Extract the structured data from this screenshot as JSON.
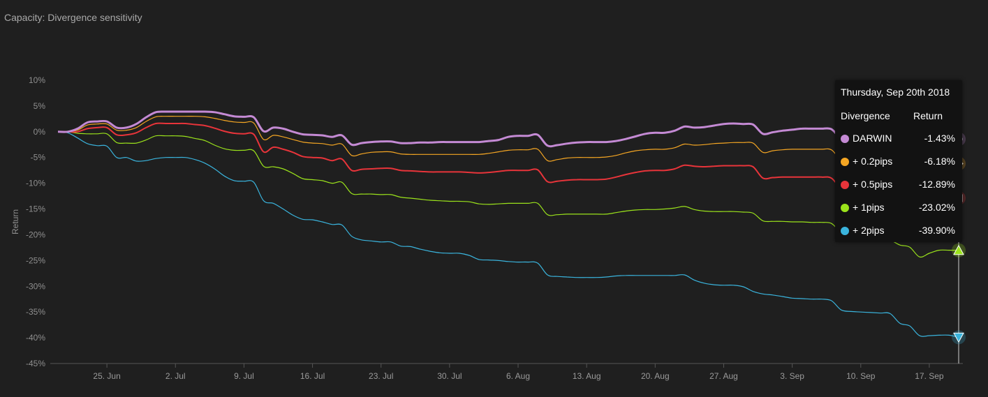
{
  "title": "Capacity: Divergence sensitivity",
  "chart_data": {
    "type": "line",
    "title": "Capacity: Divergence sensitivity",
    "ylabel": "Return",
    "ylim": [
      -45,
      10
    ],
    "y_ticks": [
      "10%",
      "5%",
      "0%",
      "-5%",
      "-10%",
      "-15%",
      "-20%",
      "-25%",
      "-30%",
      "-35%",
      "-40%",
      "-45%"
    ],
    "y_tick_values": [
      10,
      5,
      0,
      -5,
      -10,
      -15,
      -20,
      -25,
      -30,
      -35,
      -40,
      -45
    ],
    "x_start": "2018-06-20",
    "x_end": "2018-09-20",
    "x_ticks": [
      {
        "date": "2018-06-25",
        "label": "25. Jun"
      },
      {
        "date": "2018-07-02",
        "label": "2. Jul"
      },
      {
        "date": "2018-07-09",
        "label": "9. Jul"
      },
      {
        "date": "2018-07-16",
        "label": "16. Jul"
      },
      {
        "date": "2018-07-23",
        "label": "23. Jul"
      },
      {
        "date": "2018-07-30",
        "label": "30. Jul"
      },
      {
        "date": "2018-08-06",
        "label": "6. Aug"
      },
      {
        "date": "2018-08-13",
        "label": "13. Aug"
      },
      {
        "date": "2018-08-20",
        "label": "20. Aug"
      },
      {
        "date": "2018-08-27",
        "label": "27. Aug"
      },
      {
        "date": "2018-09-03",
        "label": "3. Sep"
      },
      {
        "date": "2018-09-10",
        "label": "10. Sep"
      },
      {
        "date": "2018-09-17",
        "label": "17. Sep"
      }
    ],
    "x": [
      "2018-06-20",
      "2018-06-21",
      "2018-06-22",
      "2018-06-23",
      "2018-06-24",
      "2018-06-25",
      "2018-06-26",
      "2018-06-27",
      "2018-06-28",
      "2018-06-29",
      "2018-06-30",
      "2018-07-01",
      "2018-07-02",
      "2018-07-03",
      "2018-07-04",
      "2018-07-05",
      "2018-07-06",
      "2018-07-07",
      "2018-07-08",
      "2018-07-09",
      "2018-07-10",
      "2018-07-11",
      "2018-07-12",
      "2018-07-13",
      "2018-07-14",
      "2018-07-15",
      "2018-07-16",
      "2018-07-17",
      "2018-07-18",
      "2018-07-19",
      "2018-07-20",
      "2018-07-21",
      "2018-07-22",
      "2018-07-23",
      "2018-07-24",
      "2018-07-25",
      "2018-07-26",
      "2018-07-27",
      "2018-07-28",
      "2018-07-29",
      "2018-07-30",
      "2018-07-31",
      "2018-08-01",
      "2018-08-02",
      "2018-08-03",
      "2018-08-04",
      "2018-08-05",
      "2018-08-06",
      "2018-08-07",
      "2018-08-08",
      "2018-08-09",
      "2018-08-10",
      "2018-08-11",
      "2018-08-12",
      "2018-08-13",
      "2018-08-14",
      "2018-08-15",
      "2018-08-16",
      "2018-08-17",
      "2018-08-18",
      "2018-08-19",
      "2018-08-20",
      "2018-08-21",
      "2018-08-22",
      "2018-08-23",
      "2018-08-24",
      "2018-08-25",
      "2018-08-26",
      "2018-08-27",
      "2018-08-28",
      "2018-08-29",
      "2018-08-30",
      "2018-08-31",
      "2018-09-01",
      "2018-09-02",
      "2018-09-03",
      "2018-09-04",
      "2018-09-05",
      "2018-09-06",
      "2018-09-07",
      "2018-09-08",
      "2018-09-09",
      "2018-09-10",
      "2018-09-11",
      "2018-09-12",
      "2018-09-13",
      "2018-09-14",
      "2018-09-15",
      "2018-09-16",
      "2018-09-17",
      "2018-09-18",
      "2018-09-19",
      "2018-09-20"
    ],
    "series": [
      {
        "name": "DARWIN",
        "color": "#c48ad4",
        "width": 3,
        "marker": "circle",
        "values": [
          0,
          0,
          0.6,
          1.8,
          2.0,
          2.0,
          0.8,
          0.8,
          1.5,
          2.8,
          3.8,
          3.9,
          3.9,
          3.9,
          3.9,
          3.9,
          3.8,
          3.4,
          3.0,
          2.9,
          2.8,
          0.1,
          0.8,
          0.6,
          0.0,
          -0.5,
          -0.6,
          -0.7,
          -1.0,
          -0.7,
          -2.5,
          -2.2,
          -2.0,
          -1.9,
          -1.9,
          -2.2,
          -2.2,
          -2.1,
          -2.1,
          -2.0,
          -2.0,
          -2.0,
          -2.0,
          -2.0,
          -1.8,
          -1.6,
          -1.0,
          -0.8,
          -0.8,
          -0.6,
          -2.7,
          -2.6,
          -2.3,
          -2.1,
          -2.0,
          -2.0,
          -2.0,
          -1.8,
          -1.4,
          -0.9,
          -0.4,
          -0.2,
          -0.2,
          0.2,
          1.0,
          0.8,
          0.9,
          1.2,
          1.5,
          1.6,
          1.5,
          1.4,
          -0.4,
          -0.1,
          0.2,
          0.4,
          0.6,
          0.6,
          0.6,
          0.5,
          -1.3,
          -1.3,
          -1.2,
          -1.2,
          -1.3,
          -1.3,
          -1.3,
          -1.4,
          -1.4,
          -1.4,
          -1.4,
          -1.4,
          -1.43
        ]
      },
      {
        "name": "+ 0.2pips",
        "color": "#f5a623",
        "width": 1.2,
        "marker": "diamond",
        "values": [
          0,
          0,
          0.3,
          1.3,
          1.5,
          1.5,
          0.3,
          0.3,
          0.8,
          2.0,
          2.9,
          3.0,
          3.0,
          3.0,
          3.0,
          2.9,
          2.6,
          2.2,
          1.9,
          1.8,
          1.7,
          -1.5,
          -0.7,
          -1.0,
          -1.5,
          -2.0,
          -2.2,
          -2.3,
          -2.6,
          -2.4,
          -4.6,
          -4.3,
          -4.0,
          -3.9,
          -3.9,
          -4.3,
          -4.4,
          -4.4,
          -4.4,
          -4.4,
          -4.4,
          -4.4,
          -4.4,
          -4.4,
          -4.2,
          -3.9,
          -3.6,
          -3.5,
          -3.5,
          -3.4,
          -5.6,
          -5.4,
          -5.1,
          -5.0,
          -5.0,
          -5.0,
          -4.9,
          -4.6,
          -4.1,
          -3.7,
          -3.5,
          -3.4,
          -3.4,
          -3.1,
          -2.4,
          -2.6,
          -2.5,
          -2.3,
          -2.2,
          -2.1,
          -2.1,
          -2.2,
          -4.0,
          -3.7,
          -3.5,
          -3.4,
          -3.4,
          -3.4,
          -3.4,
          -3.5,
          -5.5,
          -5.4,
          -5.3,
          -5.3,
          -5.4,
          -5.5,
          -5.7,
          -5.9,
          -6.0,
          -6.1,
          -6.1,
          -6.1,
          -6.18
        ]
      },
      {
        "name": "+ 0.5pips",
        "color": "#e8343a",
        "width": 2,
        "marker": "square",
        "values": [
          0,
          0,
          0,
          0.6,
          0.8,
          0.8,
          -0.6,
          -0.6,
          -0.2,
          0.8,
          1.6,
          1.6,
          1.6,
          1.6,
          1.4,
          1.2,
          0.7,
          0.1,
          -0.3,
          -0.4,
          -0.5,
          -3.9,
          -3.0,
          -3.4,
          -4.0,
          -4.8,
          -5.0,
          -5.1,
          -5.6,
          -5.3,
          -7.5,
          -7.3,
          -7.2,
          -7.1,
          -7.1,
          -7.5,
          -7.6,
          -7.7,
          -7.8,
          -7.8,
          -7.8,
          -7.8,
          -7.9,
          -8.0,
          -7.9,
          -7.7,
          -7.5,
          -7.5,
          -7.5,
          -7.4,
          -9.7,
          -9.6,
          -9.4,
          -9.3,
          -9.3,
          -9.3,
          -9.2,
          -8.8,
          -8.3,
          -7.9,
          -7.6,
          -7.5,
          -7.5,
          -7.2,
          -6.5,
          -6.7,
          -6.8,
          -6.7,
          -6.6,
          -6.6,
          -6.6,
          -6.8,
          -9.0,
          -8.9,
          -8.8,
          -8.8,
          -8.8,
          -8.8,
          -8.8,
          -9.0,
          -11.0,
          -11.0,
          -11.2,
          -11.5,
          -11.8,
          -12.0,
          -12.3,
          -12.6,
          -12.8,
          -12.9,
          -12.9,
          -12.9,
          -12.89
        ]
      },
      {
        "name": "+ 1pips",
        "color": "#9be31b",
        "width": 1.2,
        "marker": "triangle-up",
        "values": [
          0,
          0,
          -0.3,
          -0.4,
          -0.4,
          -0.4,
          -2.1,
          -2.2,
          -2.2,
          -1.6,
          -0.8,
          -0.8,
          -0.8,
          -0.9,
          -1.3,
          -1.7,
          -2.6,
          -3.3,
          -3.6,
          -3.6,
          -3.7,
          -6.7,
          -6.8,
          -7.2,
          -8.1,
          -9.1,
          -9.3,
          -9.5,
          -10.0,
          -9.8,
          -12.0,
          -12.1,
          -12.1,
          -12.2,
          -12.2,
          -12.7,
          -12.9,
          -13.1,
          -13.3,
          -13.4,
          -13.5,
          -13.5,
          -13.6,
          -14.0,
          -14.1,
          -14.0,
          -13.9,
          -13.9,
          -13.9,
          -13.9,
          -16.1,
          -16.1,
          -16.0,
          -16.0,
          -16.0,
          -16.0,
          -16.0,
          -15.7,
          -15.4,
          -15.2,
          -15.1,
          -15.1,
          -15.0,
          -14.8,
          -14.5,
          -15.1,
          -15.4,
          -15.5,
          -15.5,
          -15.5,
          -15.6,
          -15.8,
          -17.3,
          -17.4,
          -17.4,
          -17.5,
          -17.5,
          -17.6,
          -17.6,
          -17.8,
          -19.5,
          -19.7,
          -19.9,
          -20.2,
          -20.6,
          -21.0,
          -22.0,
          -22.4,
          -24.3,
          -23.6,
          -23.0,
          -23.0,
          -23.02
        ]
      },
      {
        "name": "+ 2pips",
        "color": "#3ab4dd",
        "width": 1.2,
        "marker": "triangle-down",
        "values": [
          0,
          -0.2,
          -1.2,
          -2.3,
          -2.7,
          -2.8,
          -5.0,
          -5.0,
          -5.7,
          -5.6,
          -5.2,
          -5.0,
          -5.0,
          -5.0,
          -5.4,
          -6.1,
          -7.2,
          -8.6,
          -9.5,
          -9.6,
          -9.8,
          -13.4,
          -13.9,
          -15.0,
          -16.2,
          -17.0,
          -17.1,
          -17.5,
          -18.0,
          -18.1,
          -20.3,
          -21.0,
          -21.2,
          -21.4,
          -21.4,
          -22.2,
          -22.3,
          -22.8,
          -23.2,
          -23.5,
          -23.6,
          -23.6,
          -24.0,
          -24.8,
          -24.9,
          -25.0,
          -25.2,
          -25.3,
          -25.3,
          -25.5,
          -27.8,
          -28.1,
          -28.2,
          -28.3,
          -28.3,
          -28.3,
          -28.2,
          -28.0,
          -27.9,
          -27.9,
          -27.9,
          -27.9,
          -27.9,
          -27.9,
          -27.8,
          -28.8,
          -29.4,
          -29.7,
          -29.8,
          -29.8,
          -30.1,
          -31.0,
          -31.5,
          -31.7,
          -32.0,
          -32.3,
          -32.4,
          -32.5,
          -32.5,
          -32.8,
          -34.6,
          -34.9,
          -35.0,
          -35.1,
          -35.2,
          -35.3,
          -37.2,
          -37.7,
          -39.6,
          -39.6,
          -39.5,
          -39.5,
          -39.9
        ]
      }
    ],
    "tooltip": {
      "date": "Thursday, Sep 20th 2018",
      "col_divergence": "Divergence",
      "col_return": "Return",
      "rows": [
        {
          "name": "DARWIN",
          "value": "-1.43%",
          "color": "#c48ad4"
        },
        {
          "name": "+ 0.2pips",
          "value": "-6.18%",
          "color": "#f5a623"
        },
        {
          "name": "+ 0.5pips",
          "value": "-12.89%",
          "color": "#e8343a"
        },
        {
          "name": "+ 1pips",
          "value": "-23.02%",
          "color": "#9be31b"
        },
        {
          "name": "+ 2pips",
          "value": "-39.90%",
          "color": "#3ab4dd"
        }
      ]
    }
  }
}
